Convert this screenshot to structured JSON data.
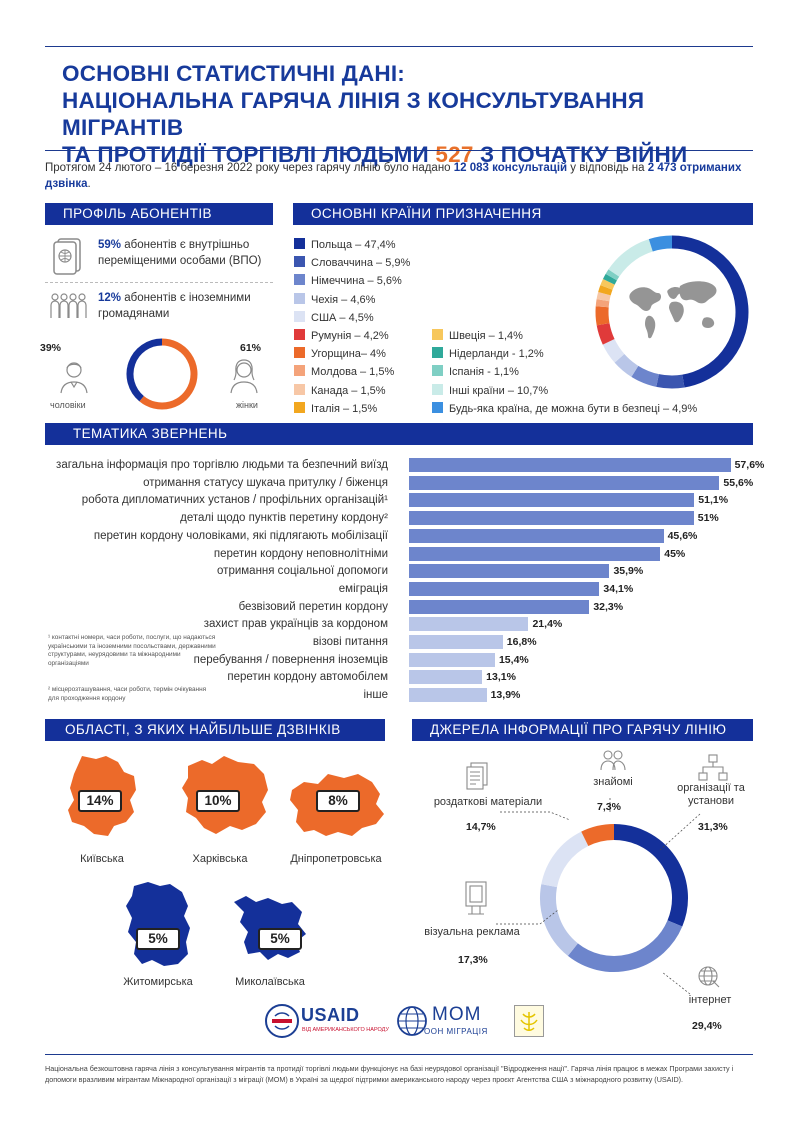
{
  "title": {
    "line1": "ОСНОВНІ СТАТИСТИЧНІ ДАНІ:",
    "line2": "НАЦІОНАЛЬНА ГАРЯЧА ЛІНІЯ З КОНСУЛЬТУВАННЯ МІГРАНТІВ",
    "line3_pre": "ТА ПРОТИДІЇ ТОРГІВЛІ ЛЮДЬМИ ",
    "line3_num": "527",
    "line3_post": " З ПОЧАТКУ ВІЙНИ"
  },
  "intro": {
    "pre": "Протягом 24 лютого – 16 березня 2022 року через гарячу лінію було надано ",
    "consultations": "12 083 консультацій",
    "mid": " у відповідь на ",
    "calls": "2 473 отриманих дзвінка",
    "post": "."
  },
  "profile": {
    "header": "ПРОФІЛЬ АБОНЕНТІВ",
    "idp_pct": "59%",
    "idp_text": " абонентів є внутрішньо переміщеними особами (ВПО)",
    "foreign_pct": "12%",
    "foreign_text": " абонентів є іноземними громадянами",
    "men_pct": "39%",
    "men_label": "чоловіки",
    "women_pct": "61%",
    "women_label": "жінки",
    "gender_values": {
      "men": 39,
      "women": 61
    }
  },
  "countries": {
    "header": "ОСНОВНІ КРАЇНИ ПРИЗНАЧЕННЯ",
    "items": [
      {
        "label": "Польща – 47,4%",
        "value": 47.4,
        "color": "#14309a"
      },
      {
        "label": "Словаччина – 5,9%",
        "value": 5.9,
        "color": "#3b56b0"
      },
      {
        "label": "Німеччина – 5,6%",
        "value": 5.6,
        "color": "#6d85cc"
      },
      {
        "label": "Чехія – 4,6%",
        "value": 4.6,
        "color": "#b9c6e8"
      },
      {
        "label": "США – 4,5%",
        "value": 4.5,
        "color": "#dce3f4"
      },
      {
        "label": "Румунія – 4,2%",
        "value": 4.2,
        "color": "#e03a3a"
      },
      {
        "label": "Угорщина– 4%",
        "value": 4.0,
        "color": "#ec6a2a"
      },
      {
        "label": "Молдова – 1,5%",
        "value": 1.5,
        "color": "#f4a37a"
      },
      {
        "label": "Канада – 1,5%",
        "value": 1.5,
        "color": "#f7c7a6"
      },
      {
        "label": "Італія – 1,5%",
        "value": 1.5,
        "color": "#f2a71f"
      },
      {
        "label": "Швеція – 1,4%",
        "value": 1.4,
        "color": "#f7c75c"
      },
      {
        "label": "Нідерланди - 1,2%",
        "value": 1.2,
        "color": "#2fa99a"
      },
      {
        "label": "Іспанія - 1,1%",
        "value": 1.1,
        "color": "#7fcfc4"
      },
      {
        "label": "Інші країни – 10,7%",
        "value": 10.7,
        "color": "#c9ebe8"
      },
      {
        "label": "Будь-яка країна, де можна бути в безпеці – 4,9%",
        "value": 4.9,
        "color": "#3b8fe0"
      }
    ]
  },
  "topics": {
    "header": "ТЕМАТИКА ЗВЕРНЕНЬ",
    "items": [
      {
        "label": "загальна інформація про торгівлю людьми та безпечний виїзд",
        "value": 57.6,
        "text": "57,6%"
      },
      {
        "label": "отримання статусу шукача притулку / біженця",
        "value": 55.6,
        "text": "55,6%"
      },
      {
        "label": "робота дипломатичних установ / профільних організацій¹",
        "value": 51.1,
        "text": "51,1%"
      },
      {
        "label": "деталі щодо пунктів перетину кордону²",
        "value": 51,
        "text": "51%"
      },
      {
        "label": "перетин кордону чоловіками, які підлягають мобілізації",
        "value": 45.6,
        "text": "45,6%"
      },
      {
        "label": "перетин кордону неповнолітніми",
        "value": 45,
        "text": "45%"
      },
      {
        "label": "отримання соціальної допомоги",
        "value": 35.9,
        "text": "35,9%"
      },
      {
        "label": "еміграція",
        "value": 34.1,
        "text": "34,1%"
      },
      {
        "label": "безвізовий перетин кордону",
        "value": 32.3,
        "text": "32,3%"
      },
      {
        "label": "захист прав українців за кордоном",
        "value": 21.4,
        "text": "21,4%"
      },
      {
        "label": "візові питання",
        "value": 16.8,
        "text": "16,8%"
      },
      {
        "label": "перебування / повернення іноземців",
        "value": 15.4,
        "text": "15,4%"
      },
      {
        "label": "перетин кордону автомобілем",
        "value": 13.1,
        "text": "13,1%"
      },
      {
        "label": "інше",
        "value": 13.9,
        "text": "13,9%"
      }
    ],
    "footnote1": "¹ контактні номери, часи роботи, послуги, що надаються українськими та іноземними посольствами, державними структурами, неурядовими та міжнародними організаціями",
    "footnote2": "² місцерозташування, часи роботи, термін очікування для проходження кордону"
  },
  "regions": {
    "header": "ОБЛАСТІ, З ЯКИХ НАЙБІЛЬШЕ ДЗВІНКІВ",
    "items": [
      {
        "name": "Київська",
        "pct": "14%"
      },
      {
        "name": "Харківська",
        "pct": "10%"
      },
      {
        "name": "Дніпропетровська",
        "pct": "8%"
      },
      {
        "name": "Житомирська",
        "pct": "5%"
      },
      {
        "name": "Миколаївська",
        "pct": "5%"
      }
    ]
  },
  "sources": {
    "header": "ДЖЕРЕЛА ІНФОРМАЦІЇ ПРО ГАРЯЧУ ЛІНІЮ",
    "acq_label": "знайомі",
    "acq_pct": "7,3%",
    "org_label": "організації та установи",
    "org_pct": "31,3%",
    "print_label": "роздаткові матеріали",
    "print_pct": "14,7%",
    "ad_label": "візуальна реклама",
    "ad_pct": "17,3%",
    "web_label": "інтернет",
    "web_pct": "29,4%",
    "values": [
      {
        "value": 31.3,
        "color": "#14309a"
      },
      {
        "value": 29.4,
        "color": "#6d85cc"
      },
      {
        "value": 17.3,
        "color": "#b9c6e8"
      },
      {
        "value": 14.7,
        "color": "#dce3f4"
      },
      {
        "value": 7.3,
        "color": "#ec6a2a"
      }
    ]
  },
  "logos": {
    "usaid": "USAID",
    "usaid_sub": "ВІД АМЕРИКАНСЬКОГО НАРОДУ",
    "iom": "МОМ",
    "iom_sub": "ООН МІГРАЦІЯ"
  },
  "footer": "Національна безкоштовна гаряча лінія з консультування мігрантів та протидії торгівлі людьми функціонує на базі неурядової організації \"Відродження нації\". Гаряча лінія працює в межах Програми захисту і допомоги вразливим мігрантам Міжнародної організації з міграції (МОМ) в Україні за щедрої підтримки американського народу через проєкт Агентства США з міжнародного розвитку (USAID)."
}
